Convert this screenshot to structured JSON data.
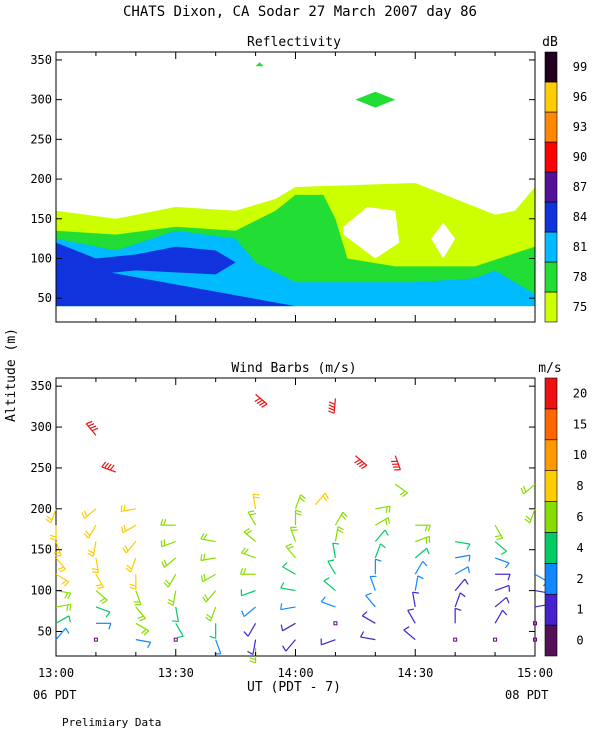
{
  "header": {
    "title": "CHATS Dixon, CA   Sodar  27 March 2007   day  86"
  },
  "footer": {
    "note": "Prelimiary Data",
    "left_tz": "06 PDT",
    "right_tz": "08 PDT"
  },
  "chart_data": [
    {
      "type": "heatmap",
      "title": "Reflectivity",
      "ylabel": "Altitude (m)",
      "xlabel": "UT  (PDT - 7)",
      "xlim": [
        "13:00",
        "15:00"
      ],
      "ylim": [
        20,
        360
      ],
      "y_ticks": [
        50,
        100,
        150,
        200,
        250,
        300,
        350
      ],
      "x_ticks": [
        "13:00",
        "13:30",
        "14:00",
        "14:30",
        "15:00"
      ],
      "colorbar": {
        "unit": "dB",
        "levels": [
          75,
          78,
          81,
          84,
          87,
          90,
          93,
          96,
          99
        ],
        "colors": [
          "#ccff00",
          "#22dd33",
          "#00bbff",
          "#1133dd",
          "#551199",
          "#ff0000",
          "#ff8800",
          "#ffcc00",
          "#220022"
        ]
      },
      "regions": [
        {
          "level": 75,
          "time_alt": [
            [
              "13:00",
              40
            ],
            [
              "13:00",
              160
            ],
            [
              "13:15",
              150
            ],
            [
              "13:30",
              165
            ],
            [
              "13:45",
              160
            ],
            [
              "13:55",
              175
            ],
            [
              "14:00",
              190
            ],
            [
              "14:30",
              195
            ],
            [
              "14:40",
              175
            ],
            [
              "14:50",
              155
            ],
            [
              "14:55",
              160
            ],
            [
              "15:00",
              190
            ],
            [
              "15:00",
              40
            ]
          ]
        },
        {
          "level": 78,
          "time_alt": [
            [
              "13:00",
              40
            ],
            [
              "13:00",
              135
            ],
            [
              "13:15",
              130
            ],
            [
              "13:30",
              140
            ],
            [
              "13:45",
              135
            ],
            [
              "13:55",
              160
            ],
            [
              "14:00",
              180
            ],
            [
              "14:07",
              180
            ],
            [
              "14:10",
              150
            ],
            [
              "14:13",
              100
            ],
            [
              "14:25",
              90
            ],
            [
              "14:45",
              90
            ],
            [
              "15:00",
              115
            ],
            [
              "15:00",
              40
            ]
          ]
        },
        {
          "level": 81,
          "time_alt": [
            [
              "13:00",
              40
            ],
            [
              "13:00",
              125
            ],
            [
              "13:15",
              110
            ],
            [
              "13:30",
              135
            ],
            [
              "13:45",
              125
            ],
            [
              "13:50",
              95
            ],
            [
              "14:00",
              70
            ],
            [
              "14:30",
              70
            ],
            [
              "14:45",
              75
            ],
            [
              "14:50",
              85
            ],
            [
              "15:00",
              55
            ],
            [
              "15:00",
              40
            ]
          ]
        },
        {
          "level": 84,
          "time_alt": [
            [
              "13:00",
              40
            ],
            [
              "13:00",
              120
            ],
            [
              "13:10",
              100
            ],
            [
              "13:20",
              105
            ],
            [
              "13:30",
              115
            ],
            [
              "13:40",
              110
            ],
            [
              "13:45",
              95
            ],
            [
              "13:40",
              80
            ],
            [
              "13:20",
              85
            ],
            [
              "13:10",
              80
            ],
            [
              "13:05",
              90
            ],
            [
              "14:00",
              40
            ]
          ]
        },
        {
          "level": 75,
          "time_alt": [
            [
              "14:12",
              140
            ],
            [
              "14:18",
              165
            ],
            [
              "14:25",
              160
            ],
            [
              "14:26",
              120
            ],
            [
              "14:20",
              100
            ],
            [
              "14:12",
              130
            ]
          ]
        },
        {
          "level": 75,
          "time_alt": [
            [
              "14:37",
              145
            ],
            [
              "14:40",
              125
            ],
            [
              "14:37",
              100
            ],
            [
              "14:34",
              125
            ]
          ]
        },
        {
          "level": 78,
          "time_alt": [
            [
              "14:15",
              300
            ],
            [
              "14:20",
              310
            ],
            [
              "14:25",
              300
            ],
            [
              "14:20",
              290
            ]
          ]
        },
        {
          "level": 78,
          "time_alt": [
            [
              "13:50",
              342
            ],
            [
              "13:51",
              347
            ],
            [
              "13:52",
              342
            ]
          ]
        }
      ]
    },
    {
      "type": "scatter",
      "title": "Wind Barbs (m/s)",
      "ylabel": "Altitude (m)",
      "xlabel": "UT  (PDT - 7)",
      "xlim": [
        "13:00",
        "15:00"
      ],
      "ylim": [
        20,
        360
      ],
      "y_ticks": [
        50,
        100,
        150,
        200,
        250,
        300,
        350
      ],
      "x_ticks": [
        "13:00",
        "13:30",
        "14:00",
        "14:30",
        "15:00"
      ],
      "colorbar": {
        "unit": "m/s",
        "levels": [
          0,
          1,
          2,
          4,
          6,
          8,
          10,
          15,
          20
        ],
        "colors": [
          "#551155",
          "#4422cc",
          "#1188ff",
          "#00cc66",
          "#88dd00",
          "#ffcc00",
          "#ff9900",
          "#ff6600",
          "#ee1111"
        ]
      },
      "columns_min": [
        0,
        10,
        20,
        30,
        40,
        50,
        60,
        70,
        80,
        90,
        100,
        110,
        120
      ],
      "altitudes": [
        40,
        60,
        80,
        100,
        120,
        140,
        160,
        180,
        200
      ],
      "speeds": [
        [
          2,
          4,
          6,
          6,
          8,
          8,
          8,
          8,
          8
        ],
        [
          0,
          2,
          4,
          6,
          8,
          8,
          8,
          8,
          8
        ],
        [
          2,
          6,
          6,
          6,
          8,
          8,
          8,
          8,
          8
        ],
        [
          0,
          4,
          4,
          6,
          6,
          6,
          6,
          6,
          0
        ],
        [
          2,
          4,
          6,
          6,
          6,
          6,
          6,
          0,
          0
        ],
        [
          1,
          1,
          2,
          4,
          6,
          6,
          6,
          6,
          8
        ],
        [
          1,
          1,
          2,
          4,
          4,
          6,
          6,
          6,
          6
        ],
        [
          1,
          0,
          2,
          4,
          4,
          4,
          6,
          6,
          0
        ],
        [
          1,
          1,
          2,
          2,
          2,
          4,
          4,
          6,
          6
        ],
        [
          1,
          1,
          1,
          2,
          2,
          4,
          6,
          6,
          0
        ],
        [
          0,
          1,
          1,
          1,
          2,
          2,
          4,
          0,
          0
        ],
        [
          0,
          1,
          1,
          1,
          1,
          2,
          4,
          6,
          0
        ],
        [
          0,
          0,
          1,
          1,
          2,
          0,
          0,
          0,
          6
        ]
      ],
      "upper_barbs": [
        {
          "min": 10,
          "alt": 290,
          "speed": 20
        },
        {
          "min": 15,
          "alt": 245,
          "speed": 20
        },
        {
          "min": 50,
          "alt": 340,
          "speed": 20
        },
        {
          "min": 70,
          "alt": 335,
          "speed": 20
        },
        {
          "min": 75,
          "alt": 265,
          "speed": 20
        },
        {
          "min": 85,
          "alt": 265,
          "speed": 20
        },
        {
          "min": 65,
          "alt": 205,
          "speed": 8
        },
        {
          "min": 85,
          "alt": 230,
          "speed": 6
        },
        {
          "min": 120,
          "alt": 230,
          "speed": 6
        },
        {
          "min": 50,
          "alt": 30,
          "speed": 6
        }
      ]
    }
  ]
}
